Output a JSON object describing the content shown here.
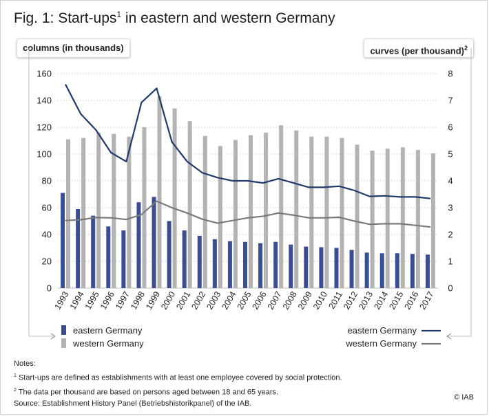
{
  "figure": {
    "title": "Fig. 1: Start-ups",
    "title_sup": "1",
    "title_rest": " in eastern and western Germany",
    "left_axis_label": "columns (in thousands)",
    "right_axis_label": "curves (per thousand)",
    "right_axis_sup": "2"
  },
  "chart_data": {
    "type": "bar",
    "categories": [
      "1993",
      "1994",
      "1995",
      "1996",
      "1997",
      "1998",
      "1999",
      "2000",
      "2001",
      "2002",
      "2003",
      "2004",
      "2005",
      "2006",
      "2007",
      "2008",
      "2009",
      "2010",
      "2011",
      "2012",
      "2013",
      "2014",
      "2015",
      "2016",
      "2017"
    ],
    "series": [
      {
        "name": "eastern Germany",
        "kind": "bar",
        "axis": "left",
        "color": "#3a4e91",
        "values": [
          71,
          59,
          54,
          46,
          43,
          64,
          68,
          50,
          43,
          39,
          36.5,
          35,
          34.5,
          33.5,
          34.5,
          32.5,
          31,
          30.5,
          30,
          28.5,
          26.5,
          26,
          26,
          25.5,
          25
        ]
      },
      {
        "name": "western Germany",
        "kind": "bar",
        "axis": "left",
        "color": "#b3b3b3",
        "values": [
          111,
          112,
          116,
          115,
          113,
          120,
          143,
          134,
          124.5,
          113.5,
          106,
          110.5,
          114,
          116,
          121.5,
          117.5,
          113,
          113,
          112,
          107,
          102.5,
          104,
          105,
          103,
          100.5
        ]
      },
      {
        "name": "eastern Germany",
        "kind": "line",
        "axis": "right",
        "color": "#1f3a6b",
        "values": [
          7.6,
          6.5,
          5.9,
          5.05,
          4.72,
          6.92,
          7.45,
          5.45,
          4.72,
          4.3,
          4.12,
          4.0,
          4.0,
          3.92,
          4.08,
          3.92,
          3.76,
          3.76,
          3.8,
          3.64,
          3.42,
          3.44,
          3.4,
          3.4,
          3.34
        ]
      },
      {
        "name": "western Germany",
        "kind": "line",
        "axis": "right",
        "color": "#7a7a7a",
        "values": [
          2.52,
          2.55,
          2.63,
          2.62,
          2.56,
          2.74,
          3.24,
          3.0,
          2.8,
          2.57,
          2.42,
          2.52,
          2.62,
          2.68,
          2.8,
          2.72,
          2.62,
          2.62,
          2.64,
          2.5,
          2.38,
          2.4,
          2.4,
          2.34,
          2.28
        ]
      }
    ],
    "ylim_left": [
      0,
      160
    ],
    "yticks_left": [
      0,
      20,
      40,
      60,
      80,
      100,
      120,
      140,
      160
    ],
    "ylim_right": [
      0,
      8
    ],
    "yticks_right": [
      0,
      1,
      2,
      3,
      4,
      5,
      6,
      7,
      8
    ],
    "grid": "horizontal dotted",
    "legend_placement": "bottom"
  },
  "legend": {
    "bars_east": "eastern Germany",
    "bars_west": "western Germany",
    "lines_east": "eastern Germany",
    "lines_west": "western Germany"
  },
  "notes": {
    "heading": "Notes:",
    "note1_sup": "1",
    "note1": " Start-ups are defined as establishments with at least one employee covered by social protection.",
    "note2_sup": "2",
    "note2": " The data per thousand are based on persons aged between 18 and 65 years.",
    "source": "Source: Establishment History Panel (Betriebshistorikpanel) of the IAB.",
    "copyright": "© IAB"
  }
}
